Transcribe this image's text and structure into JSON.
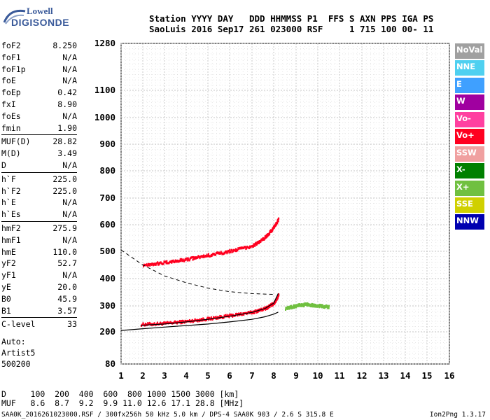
{
  "logo": {
    "line1": "Lowell",
    "line2": "DIGISONDE"
  },
  "header": {
    "line1": "Station YYYY DAY   DDD HHMMSS P1  FFS S AXN PPS IGA PS",
    "line2": "SaoLuis 2016 Sep17 261 023000 RSF     1 715 100 00- 11"
  },
  "params": {
    "groups": [
      [
        {
          "k": "foF2",
          "v": "8.250"
        },
        {
          "k": "foF1",
          "v": "N/A"
        },
        {
          "k": "foF1p",
          "v": "N/A"
        },
        {
          "k": "foE",
          "v": "N/A"
        },
        {
          "k": "foEp",
          "v": "0.42"
        },
        {
          "k": "fxI",
          "v": "8.90"
        },
        {
          "k": "foEs",
          "v": "N/A"
        },
        {
          "k": "fmin",
          "v": "1.90"
        }
      ],
      [
        {
          "k": "MUF(D)",
          "v": "28.82"
        },
        {
          "k": "M(D)",
          "v": "3.49"
        },
        {
          "k": "D",
          "v": "N/A"
        }
      ],
      [
        {
          "k": "h`F",
          "v": "225.0"
        },
        {
          "k": "h`F2",
          "v": "225.0"
        },
        {
          "k": "h`E",
          "v": "N/A"
        },
        {
          "k": "h`Es",
          "v": "N/A"
        }
      ],
      [
        {
          "k": "hmF2",
          "v": "275.9"
        },
        {
          "k": "hmF1",
          "v": "N/A"
        },
        {
          "k": "hmE",
          "v": "110.0"
        },
        {
          "k": "yF2",
          "v": "52.7"
        },
        {
          "k": "yF1",
          "v": "N/A"
        },
        {
          "k": "yE",
          "v": "20.0"
        },
        {
          "k": "B0",
          "v": "45.9"
        },
        {
          "k": "B1",
          "v": "3.57"
        }
      ],
      [
        {
          "k": "C-level",
          "v": "33"
        }
      ]
    ]
  },
  "auto": {
    "line1": "Auto:",
    "line2": "Artist5",
    "line3": "500200"
  },
  "dmuf": {
    "d_row": "D     100  200  400  600  800 1000 1500 3000 [km]",
    "muf_row": "MUF   8.6  8.7  9.2  9.9 11.0 12.6 17.1 28.8 [MHz]"
  },
  "footer": "SAA0K_2016261023000.RSF / 300fx256h 50 kHz 5.0 km / DPS-4 SAA0K 903 / 2.6 S 315.8 E",
  "version": "Ion2Png 1.3.17",
  "legend": [
    {
      "label": "NoVal",
      "color": "#a0a0a0"
    },
    {
      "label": "NNE",
      "color": "#4fd0f0"
    },
    {
      "label": "E",
      "color": "#3fa0ff"
    },
    {
      "label": "W",
      "color": "#a000a0"
    },
    {
      "label": "Vo-",
      "color": "#ff40a0"
    },
    {
      "label": "Vo+",
      "color": "#ff0020"
    },
    {
      "label": "SSW",
      "color": "#f0a0a0"
    },
    {
      "label": "X-",
      "color": "#008000"
    },
    {
      "label": "X+",
      "color": "#70c040"
    },
    {
      "label": "SSE",
      "color": "#d0d000"
    },
    {
      "label": "NNW",
      "color": "#0000b0"
    }
  ],
  "chart_data": {
    "type": "scatter",
    "xlabel": "",
    "ylabel": "",
    "x_ticks": [
      "1",
      "2",
      "3",
      "4",
      "5",
      "6",
      "7",
      "8",
      "9",
      "10",
      "11",
      "12",
      "13",
      "14",
      "15",
      "16"
    ],
    "y_ticks": [
      "80",
      "200",
      "300",
      "400",
      "500",
      "600",
      "700",
      "800",
      "900",
      "1000",
      "1100",
      "1280"
    ],
    "xlim": [
      1,
      16
    ],
    "y_tick_values": [
      80,
      200,
      300,
      400,
      500,
      600,
      700,
      800,
      900,
      1000,
      1100,
      1280
    ],
    "grid": true,
    "traces": [
      {
        "name": "Vo+",
        "color": "#ff0020",
        "x": [
          1.9,
          3.0,
          4.0,
          5.0,
          6.0,
          7.0,
          7.6,
          8.0,
          8.2
        ],
        "y": [
          228,
          232,
          240,
          250,
          262,
          275,
          290,
          310,
          340
        ]
      },
      {
        "name": "Vo+",
        "color": "#ff0020",
        "x": [
          2.0,
          3.0,
          4.0,
          5.0,
          6.0,
          7.0,
          7.5,
          7.9,
          8.2
        ],
        "y": [
          450,
          458,
          470,
          485,
          500,
          520,
          545,
          580,
          620
        ]
      },
      {
        "name": "X+",
        "color": "#70c040",
        "x": [
          8.5,
          9.0,
          9.5,
          10.0,
          10.5
        ],
        "y": [
          290,
          300,
          305,
          300,
          295
        ]
      }
    ],
    "profile_curve": {
      "x": [
        1.0,
        2.0,
        3.0,
        4.0,
        5.0,
        6.0,
        7.0,
        7.6,
        8.0,
        8.2
      ],
      "y": [
        205,
        212,
        218,
        224,
        230,
        238,
        248,
        258,
        268,
        276
      ]
    },
    "virtual_height_curve": {
      "x": [
        1.9,
        3.0,
        4.0,
        5.0,
        6.0,
        7.0,
        7.6,
        8.0,
        8.2
      ],
      "y": [
        225,
        230,
        238,
        248,
        260,
        275,
        290,
        310,
        345
      ]
    },
    "dashed_curve": {
      "x": [
        1.0,
        2.0,
        3.0,
        4.0,
        5.0,
        6.0,
        7.0,
        8.0
      ],
      "y": [
        505,
        450,
        410,
        385,
        365,
        352,
        345,
        342
      ]
    }
  }
}
